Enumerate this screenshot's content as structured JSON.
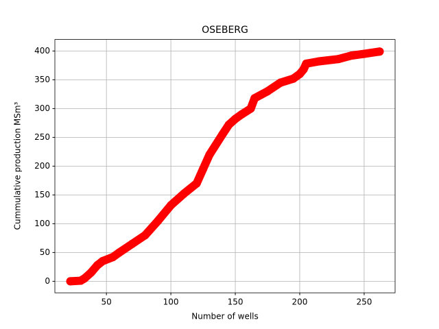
{
  "chart_data": {
    "type": "line",
    "title": "OSEBERG",
    "xlabel": "Number of wells",
    "ylabel": "Cummulative production MSm³",
    "x": [
      22,
      30,
      33,
      38,
      43,
      47,
      55,
      60,
      70,
      80,
      90,
      100,
      110,
      120,
      125,
      130,
      140,
      145,
      150,
      155,
      162,
      165,
      175,
      185,
      195,
      200,
      203,
      205,
      215,
      230,
      240,
      250,
      262
    ],
    "series": [
      {
        "color": "#ff0000",
        "values": [
          0,
          1,
          5,
          15,
          28,
          35,
          42,
          50,
          65,
          80,
          105,
          132,
          152,
          170,
          195,
          220,
          255,
          272,
          282,
          290,
          300,
          318,
          330,
          345,
          352,
          360,
          368,
          378,
          382,
          386,
          392,
          395,
          399
        ]
      }
    ],
    "xlim": [
      10,
      274
    ],
    "ylim": [
      -20,
      420
    ],
    "xticks": [
      50,
      100,
      150,
      200,
      250
    ],
    "yticks": [
      0,
      50,
      100,
      150,
      200,
      250,
      300,
      350,
      400
    ],
    "grid": true
  }
}
